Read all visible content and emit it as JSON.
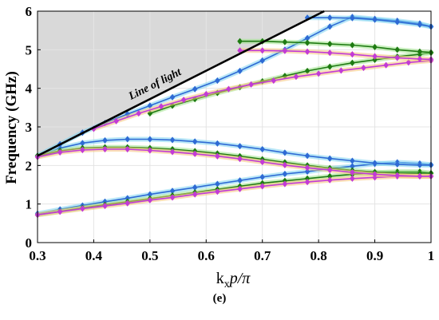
{
  "caption": "(e)",
  "chart_data": {
    "type": "line",
    "title": "",
    "xlabel_main": "k",
    "xlabel_sub": "x",
    "xlabel_rest": "p/π",
    "ylabel": "Frequency (GHz)",
    "xlim": [
      0.3,
      1.0
    ],
    "ylim": [
      0,
      6
    ],
    "xticks": [
      "0.3",
      "0.4",
      "0.5",
      "0.6",
      "0.7",
      "0.8",
      "0.9",
      "1"
    ],
    "yticks": [
      "0",
      "1",
      "2",
      "3",
      "4",
      "5",
      "6"
    ],
    "grid": true,
    "light_line": {
      "label": "Line of light",
      "x": [
        0.3,
        0.81
      ],
      "y": [
        2.25,
        6.0
      ]
    },
    "light_cone_color": "#d9d9d9",
    "series": [
      {
        "color": "#2e6ad4",
        "halo": "#7fd4f0",
        "branches": [
          {
            "x": [
              0.3,
              0.34,
              0.38,
              0.42,
              0.46,
              0.5,
              0.54,
              0.58,
              0.62,
              0.66,
              0.7,
              0.74,
              0.78,
              0.82,
              0.86,
              0.9,
              0.94,
              0.98,
              1.0
            ],
            "y": [
              0.75,
              0.86,
              0.96,
              1.06,
              1.15,
              1.25,
              1.34,
              1.43,
              1.52,
              1.61,
              1.7,
              1.78,
              1.84,
              1.92,
              1.98,
              2.04,
              2.08,
              2.05,
              2.02
            ]
          },
          {
            "x": [
              0.3,
              0.34,
              0.38,
              0.42,
              0.46,
              0.5,
              0.54,
              0.58,
              0.62,
              0.66,
              0.7,
              0.74,
              0.78,
              0.82,
              0.86,
              0.9,
              0.94,
              0.98,
              1.0
            ],
            "y": [
              2.25,
              2.45,
              2.58,
              2.65,
              2.68,
              2.68,
              2.66,
              2.62,
              2.57,
              2.5,
              2.42,
              2.33,
              2.25,
              2.18,
              2.12,
              2.06,
              2.03,
              2.01,
              2.01
            ]
          },
          {
            "x": [
              0.3,
              0.34,
              0.38,
              0.42,
              0.46,
              0.5,
              0.54,
              0.58,
              0.62,
              0.66,
              0.7,
              0.74,
              0.78,
              0.82,
              0.86,
              0.9,
              0.94,
              0.98,
              1.0
            ],
            "y": [
              2.25,
              2.55,
              2.85,
              3.1,
              3.33,
              3.55,
              3.77,
              3.98,
              4.2,
              4.45,
              4.72,
              5.0,
              5.3,
              5.6,
              5.85,
              5.8,
              5.75,
              5.68,
              5.6
            ]
          },
          {
            "x": [
              0.78,
              0.82,
              0.86,
              0.9,
              0.94,
              0.98,
              1.0
            ],
            "y": [
              5.83,
              5.83,
              5.82,
              5.78,
              5.72,
              5.65,
              5.6
            ]
          }
        ]
      },
      {
        "color": "#1e7a12",
        "halo": "#9fe38a",
        "branches": [
          {
            "x": [
              0.3,
              0.34,
              0.38,
              0.42,
              0.46,
              0.5,
              0.54,
              0.58,
              0.62,
              0.66,
              0.7,
              0.74,
              0.78,
              0.82,
              0.86,
              0.9,
              0.94,
              0.98,
              1.0
            ],
            "y": [
              0.72,
              0.81,
              0.9,
              0.98,
              1.06,
              1.14,
              1.22,
              1.3,
              1.38,
              1.46,
              1.54,
              1.6,
              1.66,
              1.72,
              1.77,
              1.81,
              1.84,
              1.84,
              1.8
            ]
          },
          {
            "x": [
              0.3,
              0.34,
              0.38,
              0.42,
              0.46,
              0.5,
              0.54,
              0.58,
              0.62,
              0.66,
              0.7,
              0.74,
              0.78,
              0.82,
              0.86,
              0.9,
              0.94,
              0.98,
              1.0
            ],
            "y": [
              2.25,
              2.38,
              2.45,
              2.47,
              2.47,
              2.45,
              2.42,
              2.37,
              2.31,
              2.24,
              2.16,
              2.08,
              2.0,
              1.93,
              1.87,
              1.83,
              1.8,
              1.8,
              1.8
            ]
          },
          {
            "x": [
              0.5,
              0.54,
              0.58,
              0.62,
              0.66,
              0.7,
              0.74,
              0.78,
              0.82,
              0.86,
              0.9,
              0.94,
              0.98,
              1.0
            ],
            "y": [
              3.35,
              3.55,
              3.72,
              3.88,
              4.03,
              4.18,
              4.32,
              4.45,
              4.56,
              4.66,
              4.74,
              4.82,
              4.88,
              4.92
            ]
          },
          {
            "x": [
              0.66,
              0.7,
              0.74,
              0.78,
              0.82,
              0.86,
              0.9,
              0.94,
              0.98,
              1.0
            ],
            "y": [
              5.22,
              5.22,
              5.2,
              5.18,
              5.15,
              5.12,
              5.07,
              5.0,
              4.95,
              4.93
            ]
          }
        ]
      },
      {
        "color": "#c23bd6",
        "halo": "#f6c27a",
        "branches": [
          {
            "x": [
              0.3,
              0.34,
              0.38,
              0.42,
              0.46,
              0.5,
              0.54,
              0.58,
              0.62,
              0.66,
              0.7,
              0.74,
              0.78,
              0.82,
              0.86,
              0.9,
              0.94,
              0.98,
              1.0
            ],
            "y": [
              0.72,
              0.8,
              0.88,
              0.95,
              1.02,
              1.1,
              1.17,
              1.25,
              1.32,
              1.39,
              1.46,
              1.52,
              1.57,
              1.62,
              1.66,
              1.69,
              1.72,
              1.72,
              1.72
            ]
          },
          {
            "x": [
              0.3,
              0.34,
              0.38,
              0.42,
              0.46,
              0.5,
              0.54,
              0.58,
              0.62,
              0.66,
              0.7,
              0.74,
              0.78,
              0.82,
              0.86,
              0.9,
              0.94,
              0.98,
              1.0
            ],
            "y": [
              2.22,
              2.34,
              2.4,
              2.42,
              2.42,
              2.39,
              2.35,
              2.3,
              2.24,
              2.17,
              2.09,
              2.01,
              1.94,
              1.88,
              1.82,
              1.77,
              1.74,
              1.72,
              1.72
            ]
          },
          {
            "x": [
              0.4,
              0.44,
              0.48,
              0.52,
              0.56,
              0.6,
              0.64,
              0.68,
              0.72,
              0.76,
              0.8,
              0.84,
              0.88,
              0.92,
              0.96,
              1.0
            ],
            "y": [
              2.95,
              3.15,
              3.35,
              3.53,
              3.7,
              3.85,
              3.98,
              4.1,
              4.2,
              4.3,
              4.38,
              4.46,
              4.53,
              4.6,
              4.67,
              4.72
            ]
          },
          {
            "x": [
              0.66,
              0.7,
              0.74,
              0.78,
              0.82,
              0.86,
              0.9,
              0.94,
              0.98,
              1.0
            ],
            "y": [
              4.98,
              4.98,
              4.97,
              4.95,
              4.92,
              4.88,
              4.83,
              4.79,
              4.76,
              4.75
            ]
          }
        ]
      }
    ]
  }
}
